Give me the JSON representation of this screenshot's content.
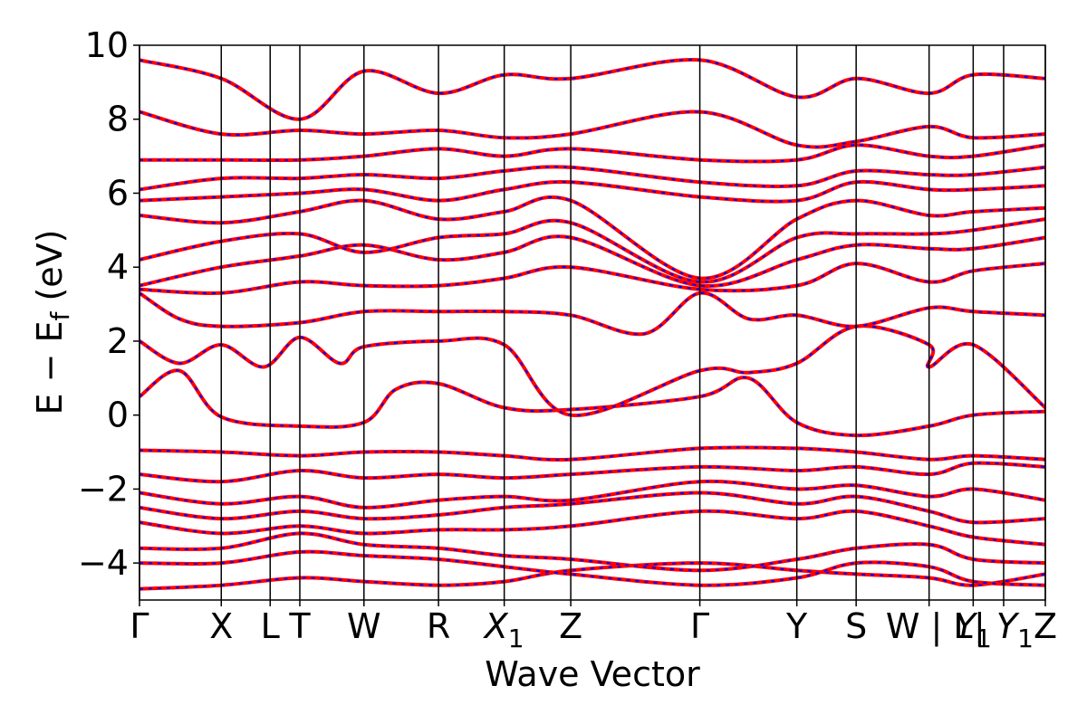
{
  "chart_data": {
    "type": "line",
    "xlabel": "Wave Vector",
    "ylabel": "E − E",
    "ylabel_sub": "f",
    "ylabel_unit": " (eV)",
    "ylim": [
      -5,
      10
    ],
    "yticks": [
      {
        "value": -4,
        "label": "−4"
      },
      {
        "value": -2,
        "label": "−2"
      },
      {
        "value": 0,
        "label": "0"
      },
      {
        "value": 2,
        "label": "2"
      },
      {
        "value": 4,
        "label": "4"
      },
      {
        "value": 6,
        "label": "6"
      },
      {
        "value": 8,
        "label": "8"
      },
      {
        "value": 10,
        "label": "10"
      }
    ],
    "xlim": [
      0,
      11.3
    ],
    "high_symmetry_points": [
      {
        "label": "Γ",
        "x": 0
      },
      {
        "label": "X",
        "x": 1.02
      },
      {
        "label": "L",
        "x": 1.63
      },
      {
        "label": "T",
        "x": 2.0
      },
      {
        "label": "W",
        "x": 2.8
      },
      {
        "label": "R",
        "x": 3.73
      },
      {
        "label": "X",
        "sub": "1",
        "x": 4.55
      },
      {
        "label": "Z",
        "x": 5.38
      },
      {
        "label": "Γ",
        "x": 6.99
      },
      {
        "label": "Y",
        "x": 8.2
      },
      {
        "label": "S",
        "x": 8.94
      },
      {
        "label": "W | L",
        "x": 9.85
      },
      {
        "label": "Y",
        "sub": "1",
        "x": 10.4
      },
      {
        "label": "| Y",
        "sub": "1",
        "x": 10.78
      },
      {
        "label": "Z",
        "x": 11.3
      }
    ],
    "series": [
      {
        "name": "",
        "color": "#ff0000",
        "style": "solid"
      },
      {
        "name": "",
        "color": "#0000ff",
        "style": "dashed"
      }
    ],
    "bands": [
      [
        [
          0,
          -4.7
        ],
        [
          1.02,
          -4.6
        ],
        [
          2.0,
          -4.4
        ],
        [
          2.8,
          -4.5
        ],
        [
          3.73,
          -4.6
        ],
        [
          4.55,
          -4.5
        ],
        [
          5.38,
          -4.2
        ],
        [
          6.99,
          -4.0
        ],
        [
          8.2,
          -4.2
        ],
        [
          8.94,
          -4.3
        ],
        [
          9.85,
          -4.4
        ],
        [
          10.4,
          -4.6
        ],
        [
          11.3,
          -4.3
        ]
      ],
      [
        [
          0,
          -4.0
        ],
        [
          1.02,
          -4.0
        ],
        [
          2.0,
          -3.7
        ],
        [
          2.8,
          -3.8
        ],
        [
          3.73,
          -3.9
        ],
        [
          4.55,
          -4.1
        ],
        [
          5.38,
          -4.3
        ],
        [
          6.99,
          -4.6
        ],
        [
          8.2,
          -4.4
        ],
        [
          8.94,
          -4.0
        ],
        [
          9.85,
          -4.1
        ],
        [
          10.4,
          -4.5
        ],
        [
          11.3,
          -4.6
        ]
      ],
      [
        [
          0,
          -3.6
        ],
        [
          1.02,
          -3.6
        ],
        [
          2.0,
          -3.2
        ],
        [
          2.8,
          -3.5
        ],
        [
          3.73,
          -3.6
        ],
        [
          4.55,
          -3.8
        ],
        [
          5.38,
          -3.9
        ],
        [
          6.99,
          -4.2
        ],
        [
          8.2,
          -3.9
        ],
        [
          8.94,
          -3.6
        ],
        [
          9.85,
          -3.5
        ],
        [
          10.4,
          -3.9
        ],
        [
          11.3,
          -4.0
        ]
      ],
      [
        [
          0,
          -2.9
        ],
        [
          1.02,
          -3.2
        ],
        [
          2.0,
          -3.0
        ],
        [
          2.8,
          -3.2
        ],
        [
          3.73,
          -3.1
        ],
        [
          4.55,
          -3.1
        ],
        [
          5.38,
          -3.0
        ],
        [
          6.99,
          -2.6
        ],
        [
          8.2,
          -2.8
        ],
        [
          8.94,
          -2.6
        ],
        [
          9.85,
          -3.0
        ],
        [
          10.4,
          -3.3
        ],
        [
          11.3,
          -3.5
        ]
      ],
      [
        [
          0,
          -2.5
        ],
        [
          1.02,
          -2.8
        ],
        [
          2.0,
          -2.6
        ],
        [
          2.8,
          -2.8
        ],
        [
          3.73,
          -2.7
        ],
        [
          4.55,
          -2.5
        ],
        [
          5.38,
          -2.4
        ],
        [
          6.99,
          -2.1
        ],
        [
          8.2,
          -2.4
        ],
        [
          8.94,
          -2.2
        ],
        [
          9.85,
          -2.6
        ],
        [
          10.4,
          -2.9
        ],
        [
          11.3,
          -2.8
        ]
      ],
      [
        [
          0,
          -2.1
        ],
        [
          1.02,
          -2.4
        ],
        [
          2.0,
          -2.2
        ],
        [
          2.8,
          -2.5
        ],
        [
          3.73,
          -2.3
        ],
        [
          4.55,
          -2.2
        ],
        [
          5.38,
          -2.3
        ],
        [
          6.99,
          -1.8
        ],
        [
          8.2,
          -2.0
        ],
        [
          8.94,
          -1.9
        ],
        [
          9.85,
          -2.2
        ],
        [
          10.4,
          -2.0
        ],
        [
          11.3,
          -2.3
        ]
      ],
      [
        [
          0,
          -1.6
        ],
        [
          1.02,
          -1.8
        ],
        [
          2.0,
          -1.5
        ],
        [
          2.8,
          -1.7
        ],
        [
          3.73,
          -1.6
        ],
        [
          4.55,
          -1.7
        ],
        [
          5.38,
          -1.6
        ],
        [
          6.99,
          -1.4
        ],
        [
          8.2,
          -1.5
        ],
        [
          8.94,
          -1.4
        ],
        [
          9.85,
          -1.6
        ],
        [
          10.4,
          -1.3
        ],
        [
          11.3,
          -1.4
        ]
      ],
      [
        [
          0,
          -0.95
        ],
        [
          1.02,
          -1.0
        ],
        [
          2.0,
          -1.1
        ],
        [
          2.8,
          -1.0
        ],
        [
          3.73,
          -1.0
        ],
        [
          4.55,
          -1.1
        ],
        [
          5.38,
          -1.2
        ],
        [
          6.99,
          -0.9
        ],
        [
          8.2,
          -0.9
        ],
        [
          8.94,
          -1.0
        ],
        [
          9.85,
          -1.2
        ],
        [
          10.4,
          -1.1
        ],
        [
          11.3,
          -1.2
        ]
      ],
      [
        [
          0,
          0.5
        ],
        [
          0.5,
          1.2
        ],
        [
          1.02,
          -0.05
        ],
        [
          2.0,
          -0.3
        ],
        [
          2.8,
          -0.2
        ],
        [
          3.2,
          0.7
        ],
        [
          3.73,
          0.85
        ],
        [
          4.55,
          0.2
        ],
        [
          5.38,
          0.15
        ],
        [
          6.99,
          0.5
        ],
        [
          7.6,
          1.0
        ],
        [
          8.2,
          -0.2
        ],
        [
          8.94,
          -0.55
        ],
        [
          9.85,
          -0.3
        ],
        [
          10.4,
          0.0
        ],
        [
          11.3,
          0.1
        ]
      ],
      [
        [
          0,
          2.0
        ],
        [
          0.5,
          1.4
        ],
        [
          1.02,
          1.9
        ],
        [
          1.55,
          1.3
        ],
        [
          2.0,
          2.1
        ],
        [
          2.5,
          1.4
        ],
        [
          2.8,
          1.85
        ],
        [
          3.73,
          2.0
        ],
        [
          4.55,
          1.9
        ],
        [
          5.38,
          0.0
        ],
        [
          6.99,
          1.2
        ],
        [
          7.6,
          1.15
        ],
        [
          8.2,
          1.4
        ],
        [
          8.94,
          2.4
        ],
        [
          9.85,
          1.9
        ],
        [
          9.85,
          1.3
        ],
        [
          10.4,
          1.9
        ],
        [
          11.3,
          0.2
        ]
      ],
      [
        [
          0,
          3.3
        ],
        [
          0.5,
          2.6
        ],
        [
          1.02,
          2.4
        ],
        [
          2.0,
          2.5
        ],
        [
          2.8,
          2.8
        ],
        [
          3.73,
          2.8
        ],
        [
          4.55,
          2.8
        ],
        [
          5.38,
          2.7
        ],
        [
          6.3,
          2.2
        ],
        [
          6.99,
          3.3
        ],
        [
          7.6,
          2.6
        ],
        [
          8.2,
          2.7
        ],
        [
          8.94,
          2.4
        ],
        [
          9.85,
          2.9
        ],
        [
          10.4,
          2.8
        ],
        [
          11.3,
          2.7
        ]
      ],
      [
        [
          0,
          3.4
        ],
        [
          1.02,
          3.3
        ],
        [
          2.0,
          3.6
        ],
        [
          2.8,
          3.5
        ],
        [
          3.73,
          3.5
        ],
        [
          4.55,
          3.7
        ],
        [
          5.38,
          4.0
        ],
        [
          6.99,
          3.4
        ],
        [
          8.2,
          3.5
        ],
        [
          8.94,
          4.1
        ],
        [
          9.85,
          3.6
        ],
        [
          10.4,
          3.9
        ],
        [
          11.3,
          4.1
        ]
      ],
      [
        [
          0,
          3.5
        ],
        [
          1.02,
          4.0
        ],
        [
          2.0,
          4.3
        ],
        [
          2.8,
          4.6
        ],
        [
          3.73,
          4.2
        ],
        [
          4.55,
          4.4
        ],
        [
          5.38,
          4.8
        ],
        [
          6.99,
          3.5
        ],
        [
          8.2,
          4.2
        ],
        [
          8.94,
          4.6
        ],
        [
          9.85,
          4.5
        ],
        [
          10.4,
          4.5
        ],
        [
          11.3,
          4.8
        ]
      ],
      [
        [
          0,
          4.2
        ],
        [
          1.02,
          4.7
        ],
        [
          2.0,
          4.9
        ],
        [
          2.8,
          4.4
        ],
        [
          3.73,
          4.8
        ],
        [
          4.55,
          4.9
        ],
        [
          5.38,
          5.2
        ],
        [
          6.99,
          3.6
        ],
        [
          8.2,
          4.8
        ],
        [
          8.94,
          4.9
        ],
        [
          9.85,
          4.9
        ],
        [
          10.4,
          5.0
        ],
        [
          11.3,
          5.3
        ]
      ],
      [
        [
          0,
          5.4
        ],
        [
          1.02,
          5.2
        ],
        [
          2.0,
          5.5
        ],
        [
          2.8,
          5.8
        ],
        [
          3.73,
          5.3
        ],
        [
          4.55,
          5.5
        ],
        [
          5.38,
          5.8
        ],
        [
          6.99,
          3.7
        ],
        [
          8.2,
          5.3
        ],
        [
          8.94,
          5.8
        ],
        [
          9.85,
          5.4
        ],
        [
          10.4,
          5.5
        ],
        [
          11.3,
          5.6
        ]
      ],
      [
        [
          0,
          5.8
        ],
        [
          1.02,
          5.9
        ],
        [
          2.0,
          6.0
        ],
        [
          2.8,
          6.1
        ],
        [
          3.73,
          5.8
        ],
        [
          4.55,
          6.1
        ],
        [
          5.38,
          6.3
        ],
        [
          6.99,
          5.9
        ],
        [
          8.2,
          5.8
        ],
        [
          8.94,
          6.3
        ],
        [
          9.85,
          6.1
        ],
        [
          10.4,
          6.1
        ],
        [
          11.3,
          6.2
        ]
      ],
      [
        [
          0,
          6.1
        ],
        [
          1.02,
          6.4
        ],
        [
          2.0,
          6.4
        ],
        [
          2.8,
          6.5
        ],
        [
          3.73,
          6.4
        ],
        [
          4.55,
          6.6
        ],
        [
          5.38,
          6.7
        ],
        [
          6.99,
          6.3
        ],
        [
          8.2,
          6.2
        ],
        [
          8.94,
          6.6
        ],
        [
          9.85,
          6.5
        ],
        [
          10.4,
          6.5
        ],
        [
          11.3,
          6.7
        ]
      ],
      [
        [
          0,
          6.9
        ],
        [
          1.02,
          6.9
        ],
        [
          2.0,
          6.9
        ],
        [
          2.8,
          7.0
        ],
        [
          3.73,
          7.2
        ],
        [
          4.55,
          7.0
        ],
        [
          5.38,
          7.2
        ],
        [
          6.99,
          6.9
        ],
        [
          8.2,
          6.9
        ],
        [
          8.94,
          7.3
        ],
        [
          9.85,
          7.0
        ],
        [
          10.4,
          7.0
        ],
        [
          11.3,
          7.3
        ]
      ],
      [
        [
          0,
          8.2
        ],
        [
          1.02,
          7.6
        ],
        [
          2.0,
          7.7
        ],
        [
          2.8,
          7.6
        ],
        [
          3.73,
          7.7
        ],
        [
          4.55,
          7.5
        ],
        [
          5.38,
          7.6
        ],
        [
          6.99,
          8.2
        ],
        [
          8.2,
          7.3
        ],
        [
          8.94,
          7.4
        ],
        [
          9.85,
          7.8
        ],
        [
          10.4,
          7.5
        ],
        [
          11.3,
          7.6
        ]
      ],
      [
        [
          0,
          9.6
        ],
        [
          1.02,
          9.1
        ],
        [
          2.0,
          8.0
        ],
        [
          2.8,
          9.3
        ],
        [
          3.73,
          8.7
        ],
        [
          4.55,
          9.2
        ],
        [
          5.38,
          9.1
        ],
        [
          6.99,
          9.6
        ],
        [
          8.2,
          8.6
        ],
        [
          8.94,
          9.1
        ],
        [
          9.85,
          8.7
        ],
        [
          10.4,
          9.2
        ],
        [
          11.3,
          9.1
        ]
      ]
    ]
  }
}
